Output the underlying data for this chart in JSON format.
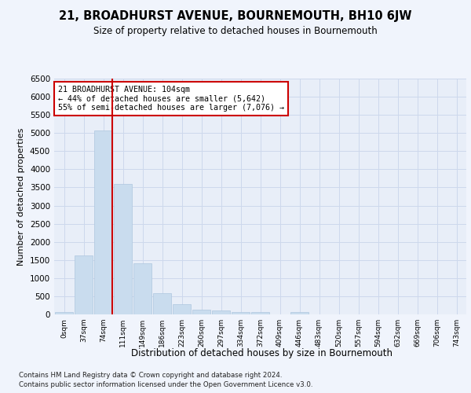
{
  "title_main": "21, BROADHURST AVENUE, BOURNEMOUTH, BH10 6JW",
  "title_sub": "Size of property relative to detached houses in Bournemouth",
  "xlabel": "Distribution of detached houses by size in Bournemouth",
  "ylabel": "Number of detached properties",
  "bar_labels": [
    "0sqm",
    "37sqm",
    "74sqm",
    "111sqm",
    "149sqm",
    "186sqm",
    "223sqm",
    "260sqm",
    "297sqm",
    "334sqm",
    "372sqm",
    "409sqm",
    "446sqm",
    "483sqm",
    "520sqm",
    "557sqm",
    "594sqm",
    "632sqm",
    "669sqm",
    "706sqm",
    "743sqm"
  ],
  "bar_values": [
    70,
    1630,
    5080,
    3600,
    1410,
    590,
    290,
    140,
    110,
    75,
    55,
    0,
    70,
    0,
    0,
    0,
    0,
    0,
    0,
    0,
    0
  ],
  "bar_color": "#c9dcee",
  "bar_edge_color": "#aec6de",
  "grid_color": "#cdd8ec",
  "vline_color": "#cc0000",
  "annotation_text": "21 BROADHURST AVENUE: 104sqm\n← 44% of detached houses are smaller (5,642)\n55% of semi-detached houses are larger (7,076) →",
  "annotation_box_color": "#cc0000",
  "ylim": [
    0,
    6500
  ],
  "yticks": [
    0,
    500,
    1000,
    1500,
    2000,
    2500,
    3000,
    3500,
    4000,
    4500,
    5000,
    5500,
    6000,
    6500
  ],
  "footnote1": "Contains HM Land Registry data © Crown copyright and database right 2024.",
  "footnote2": "Contains public sector information licensed under the Open Government Licence v3.0.",
  "bg_color": "#f0f4fc",
  "plot_bg_color": "#e8eef8"
}
